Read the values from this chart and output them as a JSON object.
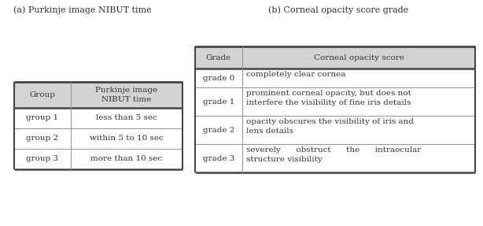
{
  "title_a": "(a) Purkinje image NIBUT time",
  "title_b": "(b) Corneal opacity score grade",
  "table_a_col1_header": "Group",
  "table_a_col2_header": "Purkinje image\nNIBUT time",
  "table_a_rows": [
    [
      "group 1",
      "less than 5 sec"
    ],
    [
      "group 2",
      "within 5 to 10 sec"
    ],
    [
      "group 3",
      "more than 10 sec"
    ]
  ],
  "table_b_col1_header": "Grade",
  "table_b_col2_header": "Corneal opacity score",
  "table_b_rows": [
    [
      "grade 0",
      "completely clear cornea"
    ],
    [
      "grade 1",
      "prominent corneal opacity, but does not\ninterfere the visibility of fine iris details"
    ],
    [
      "grade 2",
      "opacity obscures the visibility of iris and\nlens details"
    ],
    [
      "grade 3",
      "severely      obstruct      the      intraocular\nstructure visibility"
    ]
  ],
  "header_bg": "#d3d3d3",
  "fig_bg": "#ffffff",
  "border_color_thick": "#444444",
  "border_color_thin": "#999999",
  "text_color": "#333333",
  "fontsize": 7.5,
  "title_fontsize": 8.0
}
